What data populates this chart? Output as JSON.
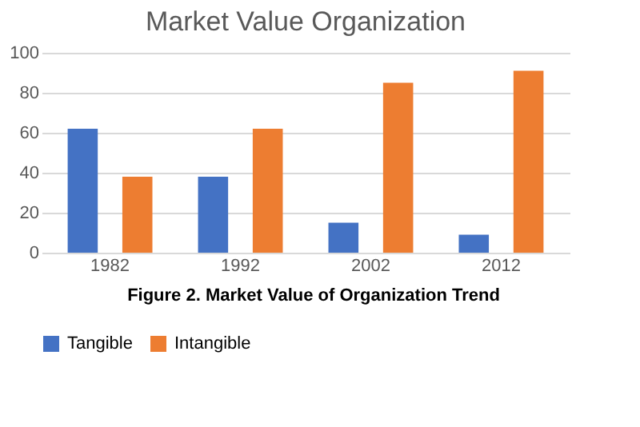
{
  "chart_data": {
    "type": "bar",
    "title": "Market Value Organization",
    "categories": [
      "1982",
      "1992",
      "2002",
      "2012"
    ],
    "series": [
      {
        "name": "Tangible",
        "color": "#4472c4",
        "values": [
          62,
          38,
          15,
          9
        ]
      },
      {
        "name": "Intangible",
        "color": "#ed7d31",
        "values": [
          38,
          62,
          85,
          91
        ]
      }
    ],
    "ylim": [
      0,
      100
    ],
    "yticks": [
      0,
      20,
      40,
      60,
      80,
      100
    ],
    "grid": "y",
    "legend": "bottom",
    "annotations": [
      "Figure 2. Market Value of Organization Trend"
    ]
  }
}
